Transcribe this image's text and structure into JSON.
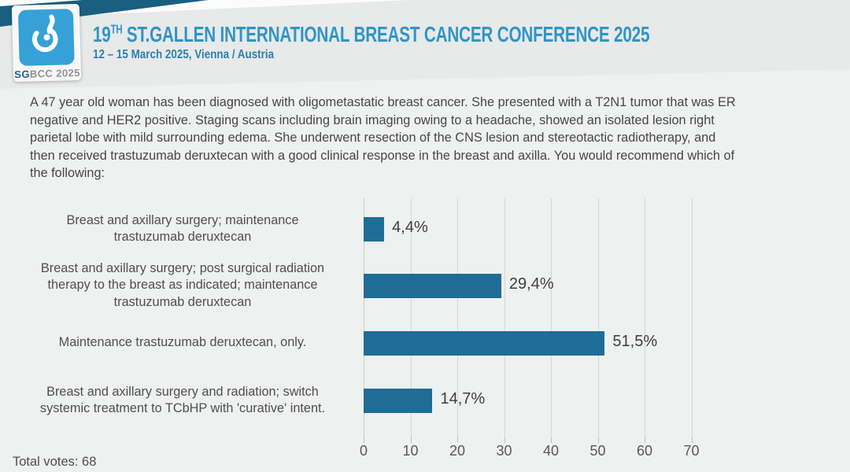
{
  "header": {
    "title_num": "19",
    "title_sup": "TH",
    "title_rest": " ST.GALLEN INTERNATIONAL BREAST CANCER CONFERENCE 2025",
    "subtitle": "12 – 15 March 2025, Vienna / Austria",
    "logo": {
      "icon": "sgbcc-breast-icon",
      "sg": "SG",
      "rest": "BCC 2025"
    },
    "colors": {
      "band_teal": "#1a5f80",
      "logo_blue": "#36a1d6",
      "title_blue": "#2f95c7"
    }
  },
  "case_text": "A 47 year old woman has been diagnosed with oligometastatic breast cancer.  She presented with a T2N1 tumor that was ER negative and HER2 positive.  Staging scans including brain imaging owing to a headache, showed an isolated lesion right parietal lobe with mild surrounding edema.  She underwent resection of the CNS lesion and stereotactic radiotherapy, and then received trastuzumab deruxtecan with a good clinical response in the breast and axilla.  You would recommend which of the following:",
  "chart_data": {
    "type": "bar",
    "orientation": "horizontal",
    "categories": [
      [
        "Breast and axillary surgery; maintenance",
        "trastuzumab deruxtecan"
      ],
      [
        "Breast and axillary surgery; post surgical radiation",
        "therapy to the breast as indicated; maintenance",
        "trastuzumab deruxtecan"
      ],
      [
        "Maintenance trastuzumab deruxtecan, only."
      ],
      [
        "Breast and axillary surgery and radiation; switch",
        "systemic treatment to TCbHP with 'curative' intent."
      ]
    ],
    "values": [
      4.4,
      29.4,
      51.5,
      14.7
    ],
    "value_labels": [
      "4,4%",
      "29,4%",
      "51,5%",
      "14,7%"
    ],
    "x_ticks": [
      0,
      10,
      20,
      30,
      40,
      50,
      60,
      70
    ],
    "xlim": [
      0,
      70
    ],
    "grid": true,
    "legend": false,
    "bar_color": "#1e6d96",
    "title": "",
    "xlabel": "",
    "ylabel": ""
  },
  "footer": {
    "total_votes": "Total votes: 68"
  }
}
